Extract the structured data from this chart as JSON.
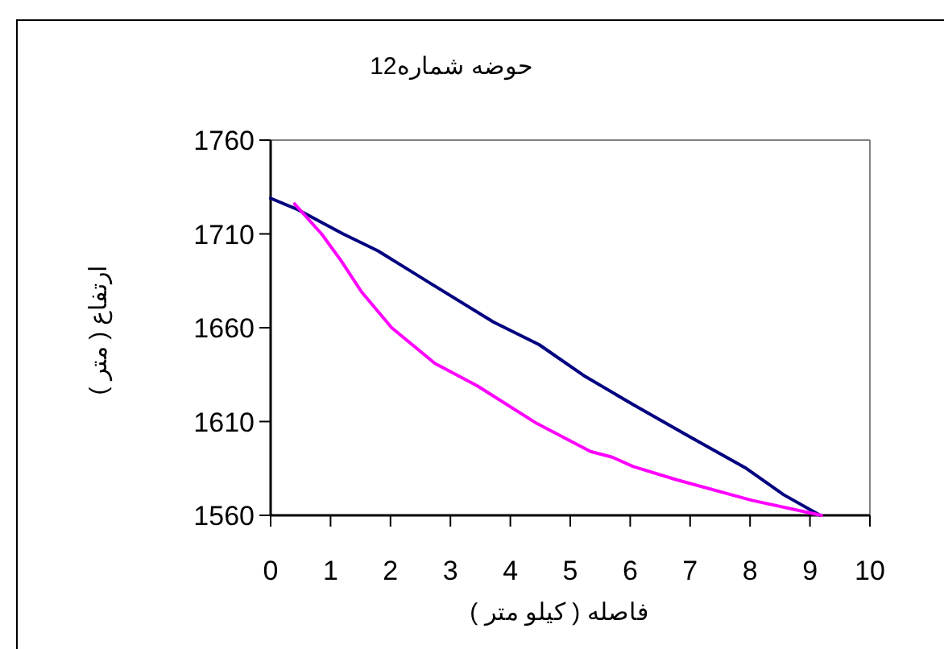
{
  "chart_data": {
    "type": "line",
    "title": "حوضه شماره12",
    "xlabel": "فاصله (  کیلو متر )",
    "ylabel": "ارتفاع ( متر )",
    "xlim": [
      0,
      10
    ],
    "xticks": [
      0,
      1,
      2,
      3,
      4,
      5,
      6,
      7,
      8,
      9,
      10
    ],
    "ylim": [
      1560,
      1760
    ],
    "yticks": [
      1560,
      1610,
      1660,
      1710,
      1760
    ],
    "grid": false,
    "marker": "none",
    "line_style": "solid",
    "series": [
      {
        "color": "#000080",
        "x": [
          0,
          0.45,
          1.21,
          1.79,
          2.65,
          3.72,
          4.48,
          5.25,
          6.05,
          6.99,
          7.94,
          8.56,
          9.17
        ],
        "values": [
          1729,
          1723,
          1710,
          1701,
          1684,
          1663,
          1651,
          1634,
          1619,
          1602,
          1585,
          1571,
          1560
        ]
      },
      {
        "color": "#ff00ff",
        "x": [
          0.4,
          0.85,
          1.17,
          1.52,
          2.02,
          2.74,
          3.45,
          4.44,
          5.34,
          5.7,
          6.05,
          6.77,
          8.03,
          9.19
        ],
        "values": [
          1726,
          1710,
          1696,
          1679,
          1660,
          1641,
          1629,
          1609,
          1594,
          1591,
          1586,
          1579,
          1568,
          1560
        ]
      }
    ]
  }
}
